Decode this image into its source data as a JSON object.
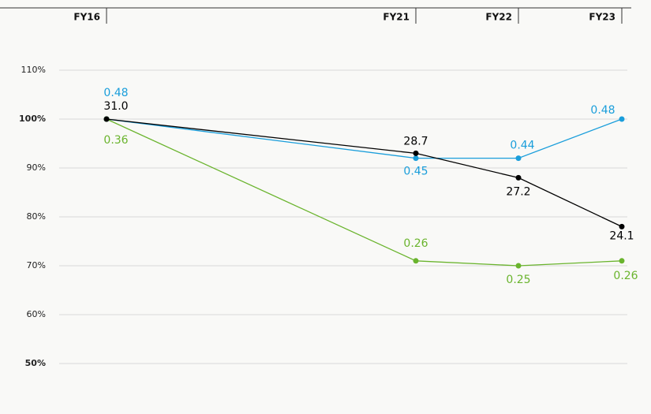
{
  "chart_data": {
    "type": "line",
    "categories": [
      "FY16",
      "FY21",
      "FY22",
      "FY23"
    ],
    "ylim": [
      45,
      115
    ],
    "yticks": [
      {
        "value": 110,
        "label": "110%"
      },
      {
        "value": 100,
        "label": "100%",
        "bold": true
      },
      {
        "value": 90,
        "label": "90%"
      },
      {
        "value": 80,
        "label": "80%"
      },
      {
        "value": 70,
        "label": "70%"
      },
      {
        "value": 60,
        "label": "60%"
      },
      {
        "value": 50,
        "label": "50%",
        "bold": true
      }
    ],
    "grid": true,
    "series": [
      {
        "color": "#1a9edb",
        "values": [
          100,
          92,
          92,
          100
        ],
        "labels": [
          "0.48",
          "0.45",
          "0.44",
          "0.48"
        ]
      },
      {
        "color": "#6ab42d",
        "values": [
          100,
          71,
          70,
          71
        ],
        "labels": [
          "0.36",
          "0.26",
          "0.25",
          "0.26"
        ]
      },
      {
        "color": "#000000",
        "values": [
          100,
          93,
          88,
          78
        ],
        "labels": [
          "31.0",
          "28.7",
          "27.2",
          "24.1"
        ]
      }
    ]
  }
}
